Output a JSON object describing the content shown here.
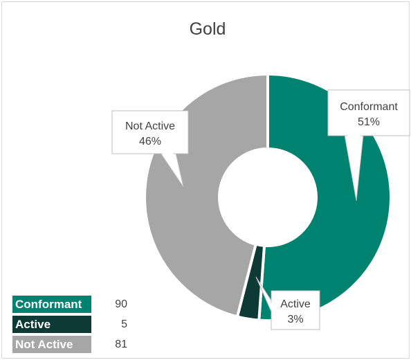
{
  "chart_data": {
    "type": "pie",
    "title": "Gold",
    "donut": true,
    "categories": [
      "Conformant",
      "Active",
      "Not Active"
    ],
    "values": [
      90,
      5,
      81
    ],
    "percent_labels": [
      "51%",
      "3%",
      "46%"
    ],
    "colors": [
      "#008270",
      "#0d3a34",
      "#a6a6a6"
    ],
    "legend": {
      "placement": "bottom-left",
      "entries": [
        {
          "label": "Conformant",
          "value": "90",
          "color": "#008270"
        },
        {
          "label": "Active",
          "value": "5",
          "color": "#0d3a34"
        },
        {
          "label": "Not Active",
          "value": "81",
          "color": "#a6a6a6"
        }
      ]
    }
  }
}
